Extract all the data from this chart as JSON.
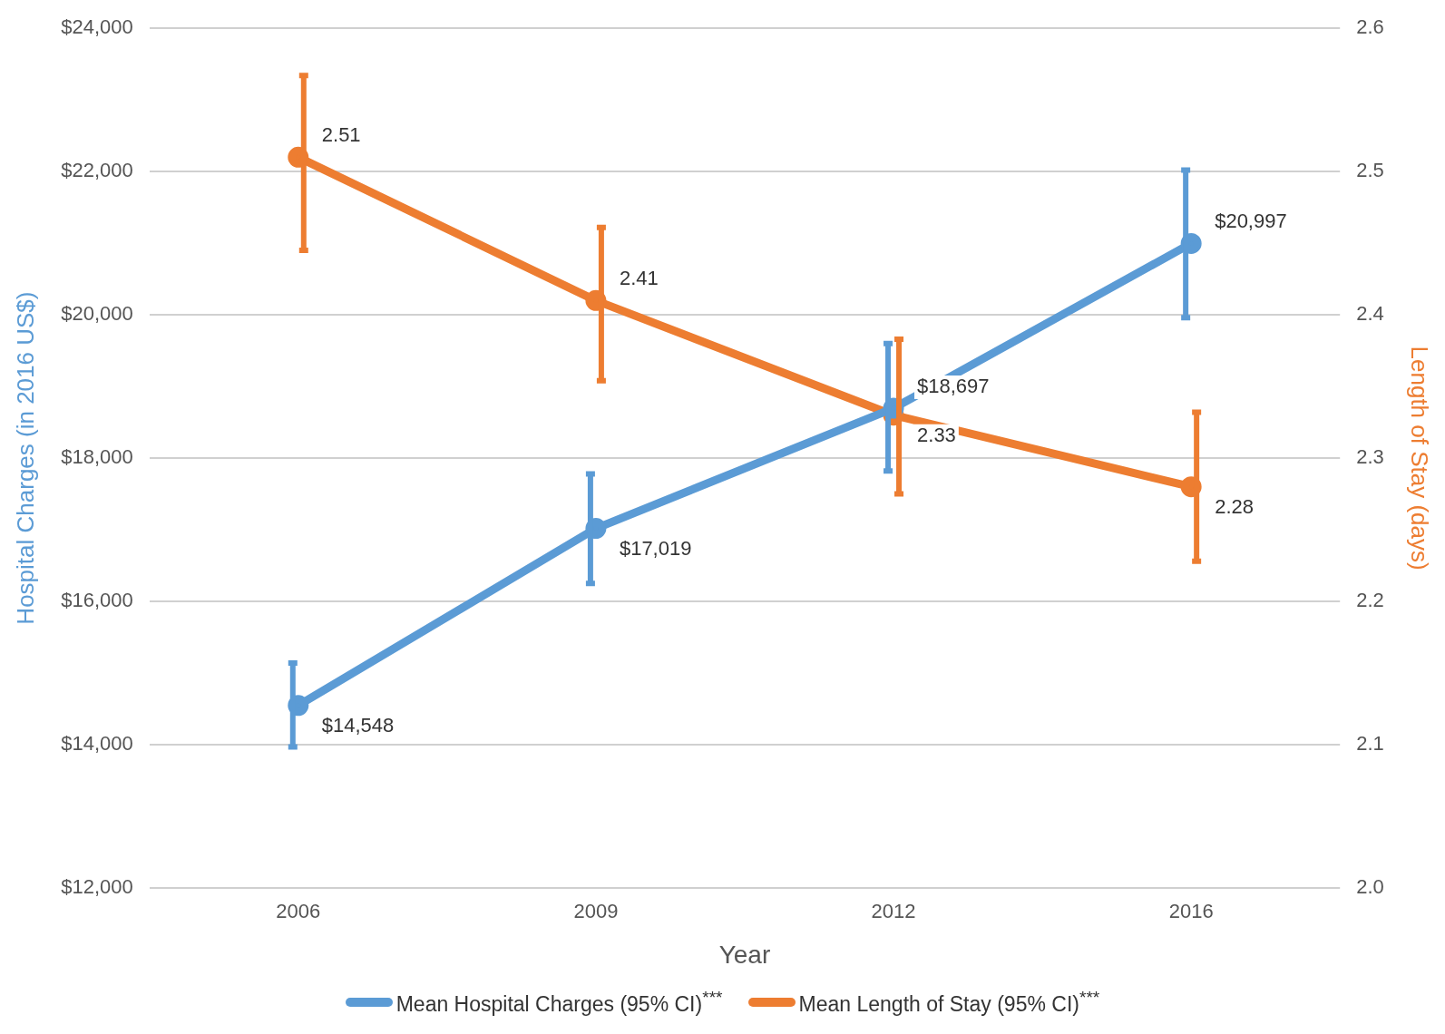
{
  "chart_data": {
    "type": "line",
    "xlabel": "Year",
    "ylabel": "Hospital Charges (in 2016 US$)",
    "y2label": "Length of Stay (days)",
    "categories": [
      "2006",
      "2009",
      "2012",
      "2016"
    ],
    "series": [
      {
        "name": "Mean Hospital Charges (95% CI)$^{***}$",
        "color": "#5b9bd5",
        "values": [
          14548,
          17019,
          18697,
          20997
        ],
        "value_labels": [
          "$14,548",
          "$17,019",
          "$18,697",
          "$20,997"
        ],
        "errors": [
          [
            13970,
            15140
          ],
          [
            16250,
            17780
          ],
          [
            17820,
            19600
          ],
          [
            19960,
            22020
          ]
        ]
      },
      {
        "name": "Mean Length of Stay (95% CI)$^{***}$",
        "color": "#ed7d31",
        "axis": "y2",
        "values": [
          2.51,
          2.41,
          2.33,
          2.28
        ],
        "value_labels": [
          "2.51",
          "2.41",
          "2.33",
          "2.28"
        ],
        "errors": [
          [
            2.445,
            2.567
          ],
          [
            2.354,
            2.461
          ],
          [
            2.275,
            2.383
          ],
          [
            2.228,
            2.332
          ]
        ]
      }
    ],
    "ylim": [
      12000,
      24000
    ],
    "yticks": [
      {
        "value": 12000,
        "label": "$12,000"
      },
      {
        "value": 14000,
        "label": "$14,000"
      },
      {
        "value": 16000,
        "label": "$16,000"
      },
      {
        "value": 18000,
        "label": "$18,000"
      },
      {
        "value": 20000,
        "label": "$20,000"
      },
      {
        "value": 22000,
        "label": "$22,000"
      },
      {
        "value": 24000,
        "label": "$24,000"
      }
    ],
    "y2lim": [
      2.0,
      2.6
    ],
    "y2ticks": [
      {
        "value": 2.0,
        "label": "2.0"
      },
      2.1,
      2.2,
      2.3,
      2.4,
      2.5,
      2.6
    ],
    "grid": "y",
    "legend": "bottom",
    "marker": "circle",
    "line_style": "solid"
  }
}
